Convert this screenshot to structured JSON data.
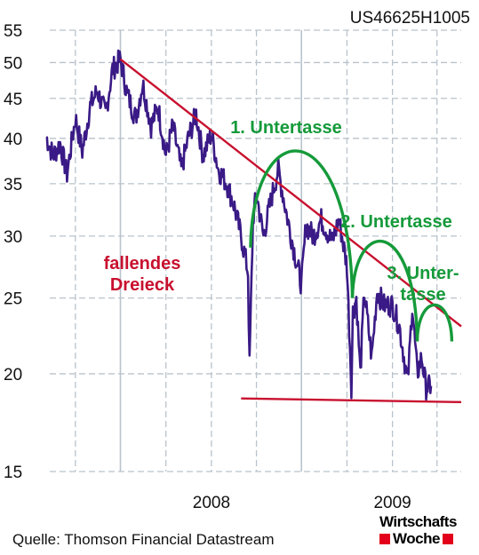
{
  "chart_data": {
    "type": "line",
    "identifier": "US46625H1005",
    "y_scale": "log",
    "ylim": [
      15,
      55
    ],
    "yticks": [
      "55",
      "50",
      "45",
      "40",
      "35",
      "30",
      "25",
      "20",
      "15"
    ],
    "ytick_values": [
      55,
      50,
      45,
      40,
      35,
      30,
      25,
      20,
      15
    ],
    "x_range": [
      "2007-02-01",
      "2009-05-20"
    ],
    "xtick_labels": [
      "2008",
      "2009"
    ],
    "xtick_dates": [
      "2008-01-01",
      "2009-01-01"
    ],
    "colors": {
      "price": "#3a1a86",
      "triangle": "#c8102e",
      "saucer": "#159a3a",
      "grid": "#b9c3cc"
    },
    "series": [
      {
        "values": [
          [
            "2007-02-01",
            40.2
          ],
          [
            "2007-02-15",
            38.0
          ],
          [
            "2007-03-01",
            39.4
          ],
          [
            "2007-03-15",
            36.0
          ],
          [
            "2007-04-01",
            42.5
          ],
          [
            "2007-04-15",
            38.5
          ],
          [
            "2007-05-01",
            44.0
          ],
          [
            "2007-05-15",
            46.0
          ],
          [
            "2007-06-01",
            43.0
          ],
          [
            "2007-06-15",
            49.0
          ],
          [
            "2007-07-01",
            50.5
          ],
          [
            "2007-07-15",
            45.5
          ],
          [
            "2007-08-01",
            42.5
          ],
          [
            "2007-08-15",
            47.0
          ],
          [
            "2007-09-01",
            41.5
          ],
          [
            "2007-09-15",
            44.0
          ],
          [
            "2007-10-01",
            38.0
          ],
          [
            "2007-10-15",
            41.5
          ],
          [
            "2007-11-01",
            36.5
          ],
          [
            "2007-11-15",
            40.0
          ],
          [
            "2007-12-01",
            43.0
          ],
          [
            "2007-12-15",
            38.0
          ],
          [
            "2008-01-01",
            40.5
          ],
          [
            "2008-01-15",
            36.5
          ],
          [
            "2008-02-01",
            35.0
          ],
          [
            "2008-02-15",
            33.0
          ],
          [
            "2008-03-01",
            30.0
          ],
          [
            "2008-03-15",
            27.0
          ],
          [
            "2008-03-18",
            20.5
          ],
          [
            "2008-03-25",
            31.5
          ],
          [
            "2008-04-01",
            34.0
          ],
          [
            "2008-04-15",
            30.0
          ],
          [
            "2008-05-01",
            33.5
          ],
          [
            "2008-05-15",
            36.5
          ],
          [
            "2008-06-01",
            32.0
          ],
          [
            "2008-06-15",
            29.0
          ],
          [
            "2008-07-01",
            26.0
          ],
          [
            "2008-07-10",
            31.0
          ],
          [
            "2008-07-25",
            30.0
          ],
          [
            "2008-08-10",
            31.5
          ],
          [
            "2008-09-01",
            29.5
          ],
          [
            "2008-09-15",
            31.5
          ],
          [
            "2008-10-01",
            27.5
          ],
          [
            "2008-10-10",
            19.3
          ],
          [
            "2008-10-13",
            24.0
          ],
          [
            "2008-10-20",
            25.0
          ],
          [
            "2008-10-28",
            20.0
          ],
          [
            "2008-11-05",
            25.5
          ],
          [
            "2008-11-20",
            21.0
          ],
          [
            "2008-12-01",
            25.5
          ],
          [
            "2008-12-15",
            24.5
          ],
          [
            "2009-01-01",
            24.5
          ],
          [
            "2009-01-15",
            23.0
          ],
          [
            "2009-02-01",
            19.5
          ],
          [
            "2009-02-10",
            24.5
          ],
          [
            "2009-02-20",
            20.0
          ],
          [
            "2009-03-01",
            21.0
          ],
          [
            "2009-03-10",
            19.2
          ],
          [
            "2009-03-20",
            19.3
          ]
        ]
      }
    ],
    "annotations": {
      "triangle_label": [
        "fallendes",
        "Dreieck"
      ],
      "saucers": [
        {
          "label": [
            "1. Untertasse"
          ],
          "start": [
            "2008-03-20",
            29.0
          ],
          "end": [
            "2008-10-12",
            25.0
          ],
          "peak_date": "2008-06-20",
          "peak": 38.5
        },
        {
          "label": [
            "2. Untertasse"
          ],
          "start": [
            "2008-10-12",
            25.0
          ],
          "end": [
            "2009-02-20",
            22.0
          ],
          "peak_date": "2008-12-20",
          "peak": 29.5
        },
        {
          "label": [
            "3. Unter-",
            "tasse"
          ],
          "start": [
            "2009-02-20",
            22.0
          ],
          "end": [
            "2009-05-01",
            22.0
          ],
          "peak_date": "2009-03-28",
          "peak": 24.5
        }
      ],
      "trendlines": [
        {
          "from": [
            "2007-07-01",
            50.5
          ],
          "to": [
            "2009-05-20",
            23.0
          ]
        },
        {
          "from": [
            "2008-03-01",
            18.6
          ],
          "to": [
            "2009-05-20",
            18.4
          ]
        }
      ]
    }
  },
  "source": "Quelle: Thomson Financial Datastream",
  "logo": {
    "line1": "Wirtschafts",
    "line2": "Woche"
  }
}
